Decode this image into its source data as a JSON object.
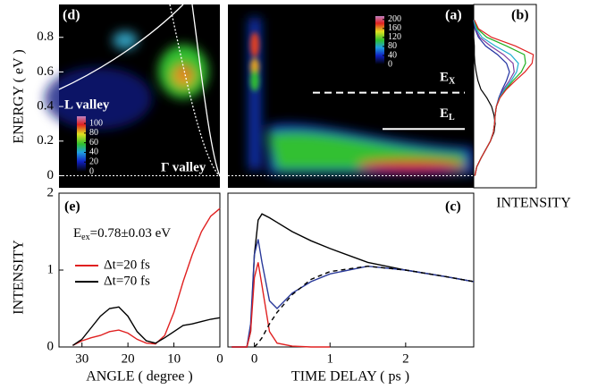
{
  "chart_data": [
    {
      "type": "heatmap",
      "label": "(d)",
      "ylabel": "ENERGY ( eV )",
      "xlim": [
        35,
        0
      ],
      "ylim": [
        -0.07,
        0.99
      ],
      "yticks": [
        0,
        0.2,
        0.4,
        0.6,
        0.8
      ],
      "annotations": [
        "L valley",
        "Γ valley"
      ],
      "colorbar": {
        "lim": [
          0,
          115
        ],
        "ticks": [
          0,
          20,
          40,
          60,
          80,
          100
        ]
      }
    },
    {
      "type": "heatmap",
      "label": "(a)",
      "xlim": [
        -0.35,
        2.9
      ],
      "ylim": [
        -0.07,
        0.99
      ],
      "levels": [
        {
          "text": "E",
          "sub": "X",
          "y": 0.48,
          "dash": true
        },
        {
          "text": "E",
          "sub": "L",
          "y": 0.27,
          "dash": false
        }
      ],
      "colorbar": {
        "lim": [
          0,
          215
        ],
        "ticks": [
          0,
          40,
          80,
          120,
          160,
          200
        ]
      }
    },
    {
      "type": "spectra",
      "label": "(b)",
      "xlabel": "INTENSITY",
      "xlim": [
        0,
        1.05
      ],
      "ylim": [
        -0.07,
        0.99
      ],
      "energies": [
        0,
        0.05,
        0.1,
        0.15,
        0.2,
        0.25,
        0.3,
        0.35,
        0.4,
        0.45,
        0.5,
        0.55,
        0.6,
        0.65,
        0.7,
        0.75,
        0.8,
        0.85,
        0.9
      ],
      "series": [
        {
          "color": "#000000",
          "values": [
            0.02,
            0.05,
            0.12,
            0.2,
            0.28,
            0.34,
            0.36,
            0.34,
            0.3,
            0.22,
            0.12,
            0.07,
            0.04,
            0.02,
            0.01,
            0.01,
            0,
            0,
            0
          ]
        },
        {
          "color": "#2030a0",
          "values": [
            0.02,
            0.05,
            0.12,
            0.2,
            0.28,
            0.33,
            0.35,
            0.36,
            0.38,
            0.42,
            0.48,
            0.55,
            0.6,
            0.55,
            0.4,
            0.2,
            0.08,
            0.02,
            0
          ]
        },
        {
          "color": "#8040a0",
          "values": [
            0.02,
            0.05,
            0.12,
            0.2,
            0.28,
            0.33,
            0.35,
            0.36,
            0.38,
            0.43,
            0.5,
            0.6,
            0.68,
            0.66,
            0.5,
            0.28,
            0.1,
            0.03,
            0
          ]
        },
        {
          "color": "#20b0d0",
          "values": [
            0.02,
            0.05,
            0.12,
            0.2,
            0.28,
            0.33,
            0.35,
            0.36,
            0.38,
            0.43,
            0.52,
            0.63,
            0.72,
            0.75,
            0.62,
            0.36,
            0.14,
            0.04,
            0
          ]
        },
        {
          "color": "#20b020",
          "values": [
            0.02,
            0.05,
            0.12,
            0.2,
            0.28,
            0.33,
            0.35,
            0.36,
            0.38,
            0.44,
            0.54,
            0.66,
            0.8,
            0.87,
            0.85,
            0.55,
            0.22,
            0.06,
            0.01
          ]
        },
        {
          "color": "#e02020",
          "values": [
            0.02,
            0.05,
            0.12,
            0.2,
            0.28,
            0.33,
            0.35,
            0.36,
            0.38,
            0.44,
            0.55,
            0.7,
            0.86,
            0.98,
            1.0,
            0.7,
            0.3,
            0.08,
            0.01
          ]
        }
      ]
    },
    {
      "type": "line",
      "label": "(e)",
      "ylabel": "INTENSITY",
      "xlabel": "ANGLE ( degree )",
      "xlim": [
        35,
        0
      ],
      "ylim": [
        0,
        2
      ],
      "xticks": [
        30,
        20,
        10,
        0
      ],
      "yticks": [
        0,
        1,
        2
      ],
      "annotation": {
        "text": "E",
        "sub": "ex",
        "rest": "=0.78±0.03 eV"
      },
      "x": [
        32,
        30,
        28,
        26,
        24,
        22,
        20,
        18,
        16,
        14,
        12,
        10,
        8,
        6,
        4,
        2,
        0
      ],
      "series": [
        {
          "name": "Δt=20 fs",
          "color": "#e02020",
          "values": [
            0.02,
            0.08,
            0.12,
            0.15,
            0.2,
            0.22,
            0.18,
            0.1,
            0.05,
            0.04,
            0.15,
            0.45,
            0.85,
            1.2,
            1.5,
            1.7,
            1.8
          ]
        },
        {
          "name": "Δt=70 fs",
          "color": "#000000",
          "values": [
            0.02,
            0.1,
            0.25,
            0.4,
            0.5,
            0.52,
            0.4,
            0.2,
            0.08,
            0.05,
            0.12,
            0.2,
            0.28,
            0.3,
            0.33,
            0.36,
            0.38
          ]
        }
      ]
    },
    {
      "type": "line",
      "label": "(c)",
      "xlabel": "TIME DELAY  ( ps )",
      "xlim": [
        -0.35,
        2.9
      ],
      "ylim": [
        0,
        2
      ],
      "xticks": [
        0,
        1,
        2
      ],
      "x": [
        -0.3,
        -0.1,
        -0.05,
        0,
        0.05,
        0.1,
        0.2,
        0.3,
        0.5,
        0.75,
        1,
        1.5,
        2,
        2.5,
        2.9
      ],
      "series": [
        {
          "color": "#000000",
          "values": [
            0,
            0,
            0.2,
            1.2,
            1.65,
            1.73,
            1.68,
            1.62,
            1.5,
            1.38,
            1.28,
            1.1,
            1.0,
            0.92,
            0.85
          ]
        },
        {
          "color": "#2a3a9a",
          "values": [
            0,
            0,
            0.3,
            1.2,
            1.4,
            1.1,
            0.6,
            0.5,
            0.7,
            0.85,
            0.95,
            1.05,
            1.0,
            0.92,
            0.85
          ]
        },
        {
          "color": "#e02020",
          "values": [
            0,
            0,
            0.2,
            0.9,
            1.1,
            0.8,
            0.2,
            0.05,
            0.01,
            0,
            0,
            null,
            null,
            null,
            null
          ]
        },
        {
          "color": "#000000",
          "dash": true,
          "values": [
            null,
            null,
            null,
            0,
            0.05,
            0.12,
            0.3,
            0.45,
            0.68,
            0.88,
            0.98,
            1.05,
            1.0,
            0.92,
            0.85
          ]
        }
      ]
    }
  ]
}
